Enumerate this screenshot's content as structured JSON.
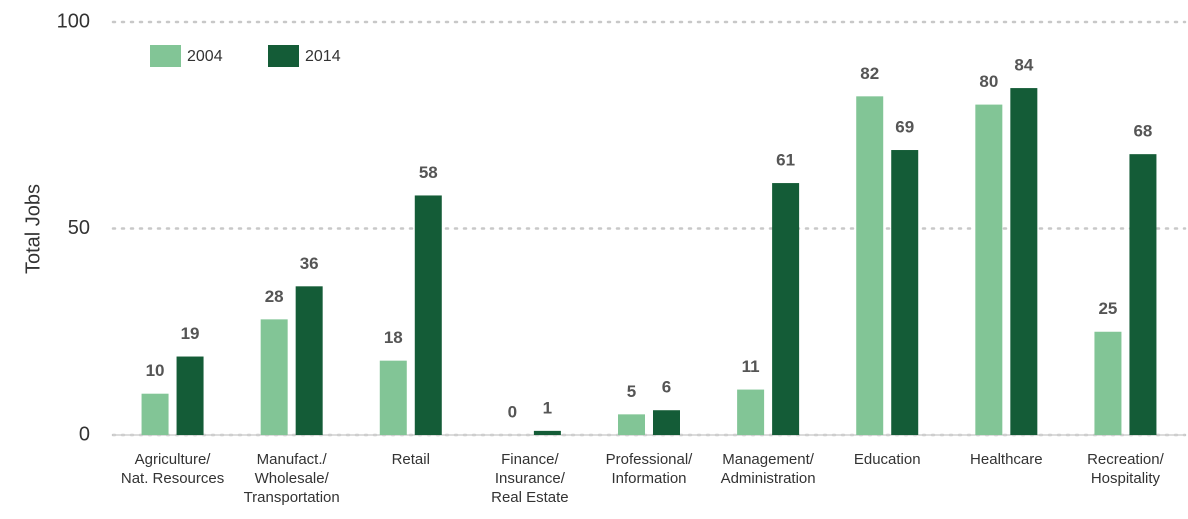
{
  "chart_data": {
    "type": "bar",
    "y_label": "Total Jobs",
    "categories": [
      "Agriculture/\nNat. Resources",
      "Manufact./\nWholesale/\nTransportation",
      "Retail",
      "Finance/\nInsurance/\nReal Estate",
      "Professional/\nInformation",
      "Management/\nAdministration",
      "Education",
      "Healthcare",
      "Recreation/\nHospitality"
    ],
    "series": [
      {
        "name": "2004",
        "color": "#82c596",
        "values": [
          10,
          28,
          18,
          0,
          5,
          11,
          82,
          80,
          25
        ]
      },
      {
        "name": "2014",
        "color": "#145c37",
        "values": [
          19,
          36,
          58,
          1,
          6,
          61,
          69,
          84,
          68
        ]
      }
    ],
    "ylim": [
      0,
      100
    ],
    "yticks": [
      0,
      50,
      100
    ],
    "grid": true,
    "legend": "top-left"
  }
}
